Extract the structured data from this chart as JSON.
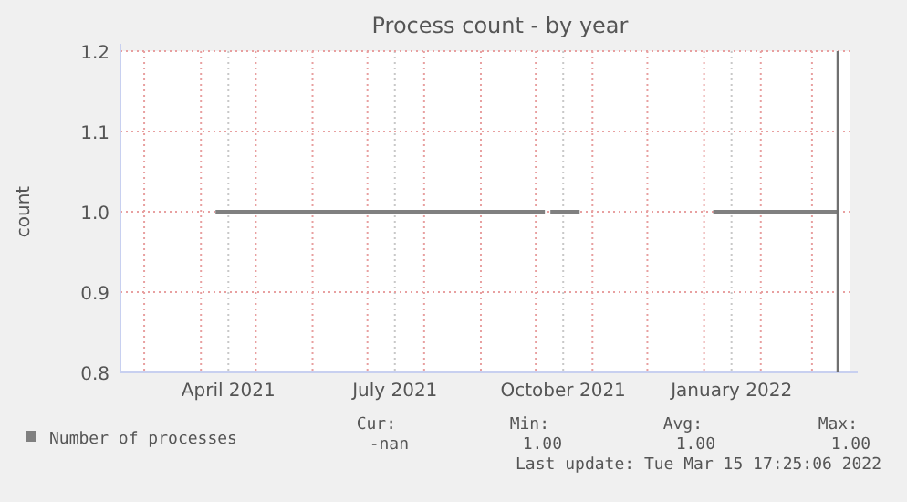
{
  "chart_data": {
    "type": "line",
    "title": "Process count - by year",
    "ylabel": "count",
    "xlim": [
      "2021-02-16",
      "2022-03-22"
    ],
    "xticks": [
      {
        "value": "2021-03-01",
        "label": null
      },
      {
        "value": "2021-04-01",
        "label": null
      },
      {
        "value": "2021-04-16",
        "label": "April 2021"
      },
      {
        "value": "2021-05-01",
        "label": null
      },
      {
        "value": "2021-06-01",
        "label": null
      },
      {
        "value": "2021-07-01",
        "label": null
      },
      {
        "value": "2021-07-16",
        "label": "July 2021"
      },
      {
        "value": "2021-08-01",
        "label": null
      },
      {
        "value": "2021-09-01",
        "label": null
      },
      {
        "value": "2021-10-01",
        "label": null
      },
      {
        "value": "2021-10-16",
        "label": "October 2021"
      },
      {
        "value": "2021-11-01",
        "label": null
      },
      {
        "value": "2021-12-01",
        "label": null
      },
      {
        "value": "2022-01-01",
        "label": null
      },
      {
        "value": "2022-01-16",
        "label": "January 2022"
      },
      {
        "value": "2022-02-01",
        "label": null
      },
      {
        "value": "2022-03-01",
        "label": null
      }
    ],
    "ylim": [
      0.8,
      1.2
    ],
    "yticks": [
      0.8,
      0.9,
      {
        "value": 1.0,
        "label": "1.0"
      },
      1.1,
      1.2
    ],
    "grid": true,
    "legend": "bottom left",
    "series": [
      {
        "name": "Number of processes",
        "color": "#808080",
        "x": [
          "2021-04-09",
          "2021-10-06",
          "2021-10-07",
          "2021-10-09",
          "2021-10-25",
          "2021-10-26",
          "2022-01-06",
          "2022-03-15"
        ],
        "values": [
          1.0,
          1.0,
          null,
          1.0,
          1.0,
          null,
          1.0,
          1.0
        ]
      }
    ],
    "ref_lines": [
      {
        "axis": "x",
        "value": "2022-03-15",
        "color": "#707070"
      }
    ],
    "annotations": [
      "Cur:",
      "Min:",
      "Avg:",
      "Max:",
      "-nan",
      "1.00",
      "1.00",
      "1.00",
      "Last update: Tue Mar 15 17:25:06 2022"
    ]
  }
}
